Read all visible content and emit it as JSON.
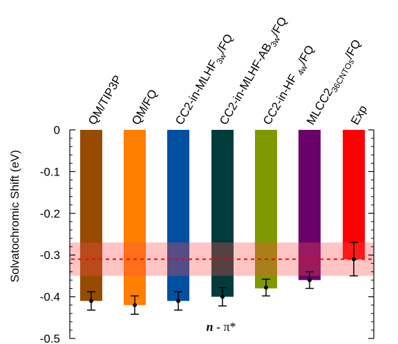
{
  "chart_data": {
    "type": "bar",
    "categories": [
      {
        "id": "qm_tip3p",
        "label": "QM/TIP3P",
        "sub": ""
      },
      {
        "id": "qm_fq",
        "label": "QM/FQ",
        "sub": ""
      },
      {
        "id": "cc2_mlhf",
        "label": "CC2-in-MLHF",
        "sub": "3w",
        "suffix": "/FQ"
      },
      {
        "id": "cc2_mlhf_ab",
        "label": "CC2-in-MLHF-AB",
        "sub": "3w",
        "suffix": "/FQ"
      },
      {
        "id": "cc2_hf",
        "label": "CC2-in-HF ",
        "sub": "4w",
        "suffix": "/FQ"
      },
      {
        "id": "mlcc2",
        "label": "MLCC2",
        "sub": "36CNTOs",
        "suffix": "/FQ"
      },
      {
        "id": "exp",
        "label": "Exp",
        "sub": ""
      }
    ],
    "values": [
      -0.41,
      -0.42,
      -0.41,
      -0.4,
      -0.38,
      -0.36,
      -0.31
    ],
    "points": [
      -0.41,
      -0.42,
      -0.41,
      -0.4,
      -0.378,
      -0.36,
      -0.31
    ],
    "errors": [
      0.022,
      0.022,
      0.022,
      0.022,
      0.02,
      0.02,
      0.04
    ],
    "colors": [
      "#964b00",
      "#ff7f00",
      "#0050a0",
      "#003c3c",
      "#7f9900",
      "#6a006a",
      "#ff0000"
    ],
    "reference": {
      "value": -0.31,
      "band": [
        -0.35,
        -0.27
      ],
      "line_color": "#ff0000",
      "band_color": "#ffb6b6"
    },
    "ylabel": "Solvatochromic Shift (eV)",
    "ylim": [
      -0.5,
      0
    ],
    "yticks": [
      "0",
      "-0.1",
      "-0.2",
      "-0.3",
      "-0.4",
      "-0.5"
    ],
    "ytick_values": [
      0,
      -0.1,
      -0.2,
      -0.3,
      -0.4,
      -0.5
    ],
    "annotation_bold": "n",
    "annotation_rest": " - π*",
    "grid": false
  }
}
